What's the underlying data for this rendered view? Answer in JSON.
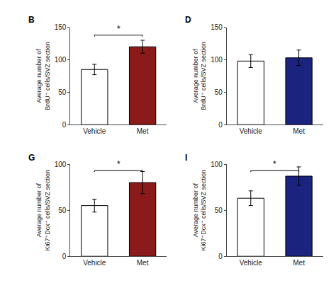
{
  "chart_data": [
    {
      "type": "bar",
      "title": "B",
      "categories": [
        "Vehicle",
        "Met"
      ],
      "values": [
        85,
        120
      ],
      "errors": [
        8,
        10
      ],
      "colors": [
        "#FFFFFF",
        "#8B1A1A"
      ],
      "ylabel": "Average number of\nBrdU⁺ cells/SVZ section",
      "ylim": [
        0,
        150
      ],
      "yticks": [
        0,
        50,
        100,
        150
      ],
      "grid": false,
      "annotations": [
        {
          "text": "*",
          "x": [
            "Vehicle",
            "Met"
          ],
          "y": 138
        }
      ]
    },
    {
      "type": "bar",
      "title": "D",
      "categories": [
        "Vehicle",
        "Met"
      ],
      "values": [
        98,
        103
      ],
      "errors": [
        10,
        12
      ],
      "colors": [
        "#FFFFFF",
        "#1A237E"
      ],
      "ylabel": "Average number of\nBrdU⁺ cells/SVZ section",
      "ylim": [
        0,
        150
      ],
      "yticks": [
        0,
        50,
        100,
        150
      ],
      "grid": false
    },
    {
      "type": "bar",
      "title": "G",
      "categories": [
        "Vehicle",
        "Met"
      ],
      "values": [
        55,
        80
      ],
      "errors": [
        7,
        12
      ],
      "colors": [
        "#FFFFFF",
        "#8B1A1A"
      ],
      "ylabel": "Average number of\nKi67⁺Dcx⁺ cells/SVZ section",
      "ylim": [
        0,
        100
      ],
      "yticks": [
        0,
        50,
        100
      ],
      "grid": false,
      "annotations": [
        {
          "text": "*",
          "x": [
            "Vehicle",
            "Met"
          ],
          "y": 93
        }
      ]
    },
    {
      "type": "bar",
      "title": "I",
      "categories": [
        "Vehicle",
        "Met"
      ],
      "values": [
        63,
        87
      ],
      "errors": [
        8,
        10
      ],
      "colors": [
        "#FFFFFF",
        "#1A237E"
      ],
      "ylabel": "Average number of\nKi67⁺Dcx⁺ cells/SVZ section",
      "ylim": [
        0,
        100
      ],
      "yticks": [
        0,
        50,
        100
      ],
      "grid": false,
      "annotations": [
        {
          "text": "*",
          "x": [
            "Vehicle",
            "Met"
          ],
          "y": 93
        }
      ]
    }
  ]
}
